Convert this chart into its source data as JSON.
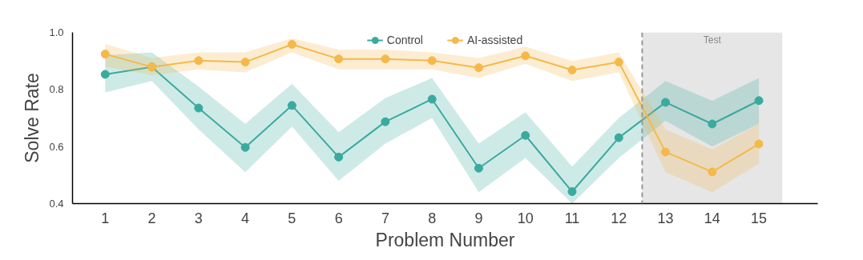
{
  "chart_data": {
    "type": "line",
    "xlabel": "Problem Number",
    "ylabel": "Solve Rate",
    "x": [
      1,
      2,
      3,
      4,
      5,
      6,
      7,
      8,
      9,
      10,
      11,
      12,
      13,
      14,
      15
    ],
    "series": [
      {
        "name": "Control",
        "color": "#3aaa9f",
        "values": [
          0.853,
          0.879,
          0.735,
          0.597,
          0.744,
          0.563,
          0.687,
          0.766,
          0.524,
          0.639,
          0.442,
          0.631,
          0.755,
          0.679,
          0.761
        ],
        "lower": [
          0.79,
          0.83,
          0.66,
          0.51,
          0.67,
          0.48,
          0.61,
          0.7,
          0.44,
          0.56,
          0.4,
          0.56,
          0.69,
          0.6,
          0.68
        ],
        "upper": [
          0.92,
          0.93,
          0.81,
          0.68,
          0.82,
          0.65,
          0.77,
          0.84,
          0.61,
          0.72,
          0.53,
          0.7,
          0.83,
          0.76,
          0.84
        ]
      },
      {
        "name": "AI-assisted",
        "color": "#f5b94a",
        "values": [
          0.924,
          0.879,
          0.901,
          0.896,
          0.958,
          0.907,
          0.907,
          0.901,
          0.876,
          0.918,
          0.868,
          0.896,
          0.581,
          0.511,
          0.609
        ],
        "lower": [
          0.88,
          0.85,
          0.87,
          0.86,
          0.93,
          0.87,
          0.87,
          0.87,
          0.84,
          0.89,
          0.83,
          0.86,
          0.51,
          0.44,
          0.54
        ],
        "upper": [
          0.96,
          0.91,
          0.93,
          0.93,
          0.98,
          0.94,
          0.94,
          0.93,
          0.91,
          0.95,
          0.9,
          0.93,
          0.66,
          0.59,
          0.68
        ]
      }
    ],
    "xlim": [
      0.3,
      16.26
    ],
    "xticks": [
      1,
      2,
      3,
      4,
      5,
      6,
      7,
      8,
      9,
      10,
      11,
      12,
      13,
      14,
      15
    ],
    "ylim": [
      0.4,
      1.0
    ],
    "yticks": [
      {
        "value": 0.4,
        "label": "0.4"
      },
      {
        "value": 0.6,
        "label": "0.6"
      },
      {
        "value": 0.8,
        "label": "0.8"
      },
      {
        "value": 1.0,
        "label": "1.0"
      }
    ],
    "ref_lines": [
      {
        "axis": "x",
        "value": 12.5,
        "color": "#999999",
        "line_style": "dashed"
      }
    ],
    "bands": [
      {
        "axis": "x",
        "from": 12.5,
        "to": 15.5,
        "label": "Test",
        "color": "#e6e6e6"
      }
    ],
    "marker": "circle",
    "line_style": "solid",
    "grid": false,
    "legend": "top"
  }
}
